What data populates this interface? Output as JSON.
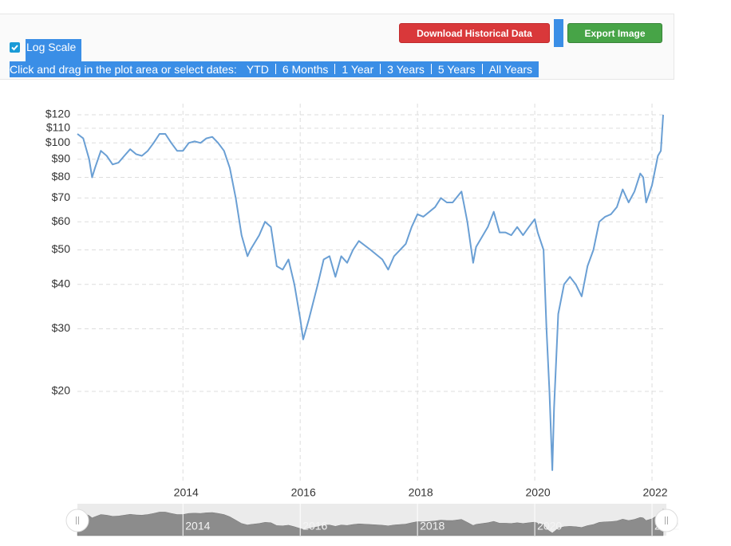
{
  "toolbar": {
    "log_scale_label": "Log Scale",
    "download_button": "Download Historical Data",
    "export_button": "Export Image",
    "range_prompt": "Click and drag in the plot area or select dates:",
    "ranges": [
      "YTD",
      "6 Months",
      "1 Year",
      "3 Years",
      "5 Years",
      "All Years"
    ]
  },
  "chart_data": {
    "type": "line",
    "log_scale": true,
    "grid": true,
    "color": "#6a9fd4",
    "x": [
      2012.2,
      2012.3,
      2012.4,
      2012.45,
      2012.5,
      2012.6,
      2012.7,
      2012.8,
      2012.9,
      2013.0,
      2013.1,
      2013.2,
      2013.3,
      2013.4,
      2013.5,
      2013.6,
      2013.7,
      2013.8,
      2013.9,
      2014.0,
      2014.1,
      2014.2,
      2014.3,
      2014.4,
      2014.5,
      2014.6,
      2014.7,
      2014.8,
      2014.9,
      2015.0,
      2015.1,
      2015.15,
      2015.3,
      2015.4,
      2015.5,
      2015.6,
      2015.7,
      2015.8,
      2015.9,
      2016.0,
      2016.05,
      2016.15,
      2016.3,
      2016.4,
      2016.5,
      2016.6,
      2016.7,
      2016.8,
      2016.9,
      2017.0,
      2017.2,
      2017.4,
      2017.5,
      2017.6,
      2017.8,
      2017.9,
      2018.0,
      2018.1,
      2018.3,
      2018.4,
      2018.5,
      2018.6,
      2018.75,
      2018.85,
      2018.95,
      2019.0,
      2019.2,
      2019.3,
      2019.4,
      2019.5,
      2019.6,
      2019.7,
      2019.8,
      2019.9,
      2020.0,
      2020.05,
      2020.15,
      2020.2,
      2020.25,
      2020.3,
      2020.33,
      2020.4,
      2020.5,
      2020.6,
      2020.7,
      2020.8,
      2020.9,
      2021.0,
      2021.1,
      2021.2,
      2021.3,
      2021.4,
      2021.5,
      2021.6,
      2021.7,
      2021.8,
      2021.85,
      2021.9,
      2022.0,
      2022.1,
      2022.15,
      2022.19
    ],
    "values": [
      106,
      103,
      90,
      80,
      85,
      95,
      92,
      87,
      88,
      92,
      96,
      93,
      92,
      95,
      100,
      106,
      106,
      100,
      95,
      95,
      100,
      101,
      100,
      103,
      104,
      100,
      95,
      85,
      70,
      55,
      48,
      50,
      55,
      60,
      58,
      45,
      44,
      47,
      40,
      32,
      28,
      32,
      40,
      47,
      48,
      42,
      48,
      46,
      50,
      53,
      50,
      47,
      44,
      48,
      52,
      58,
      63,
      62,
      66,
      70,
      68,
      68,
      73,
      60,
      46,
      51,
      58,
      64,
      56,
      56,
      55,
      58,
      55,
      58,
      61,
      56,
      50,
      30,
      20,
      12,
      18,
      33,
      40,
      42,
      40,
      37,
      45,
      50,
      60,
      62,
      63,
      66,
      74,
      68,
      73,
      82,
      80,
      68,
      76,
      92,
      95,
      120
    ],
    "xlim": [
      2012.2,
      2022.19
    ],
    "xticks": [
      2014,
      2016,
      2018,
      2020,
      2022
    ],
    "ylim": [
      11.1,
      129
    ],
    "yticks": [
      {
        "value": 20,
        "label": "$20"
      },
      {
        "value": 30,
        "label": "$30"
      },
      {
        "value": 40,
        "label": "$40"
      },
      {
        "value": 50,
        "label": "$50"
      },
      {
        "value": 60,
        "label": "$60"
      },
      {
        "value": 70,
        "label": "$70"
      },
      {
        "value": 80,
        "label": "$80"
      },
      {
        "value": 90,
        "label": "$90"
      },
      {
        "value": 100,
        "label": "$100"
      },
      {
        "value": 110,
        "label": "$110"
      },
      {
        "value": 120,
        "label": "$120"
      }
    ]
  }
}
